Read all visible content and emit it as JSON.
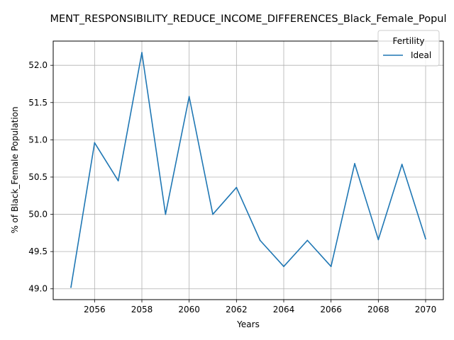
{
  "chart_data": {
    "type": "line",
    "title": "MENT_RESPONSIBILITY_REDUCE_INCOME_DIFFERENCES_Black_Female_Popul",
    "xlabel": "Years",
    "ylabel": "% of Black_Female Population",
    "xlim": [
      2054.25,
      2070.75
    ],
    "ylim": [
      48.855,
      52.325
    ],
    "xticks": [
      2056,
      2058,
      2060,
      2062,
      2064,
      2066,
      2068,
      2070
    ],
    "yticks": [
      49.0,
      49.5,
      50.0,
      50.5,
      51.0,
      51.5,
      52.0
    ],
    "ytick_labels": [
      "49.0",
      "49.5",
      "50.0",
      "50.5",
      "51.0",
      "51.5",
      "52.0"
    ],
    "grid": true,
    "legend": {
      "title": "Fertility",
      "placement": "top-right"
    },
    "series": [
      {
        "name": "Ideal",
        "color": "#1f77b4",
        "x": [
          2055,
          2056,
          2057,
          2058,
          2059,
          2060,
          2061,
          2062,
          2063,
          2064,
          2065,
          2066,
          2067,
          2068,
          2069,
          2070
        ],
        "y": [
          49.02,
          50.96,
          50.45,
          52.17,
          50.0,
          51.58,
          50.0,
          50.36,
          49.65,
          49.3,
          49.65,
          49.3,
          50.68,
          49.66,
          50.67,
          49.67
        ]
      }
    ]
  }
}
